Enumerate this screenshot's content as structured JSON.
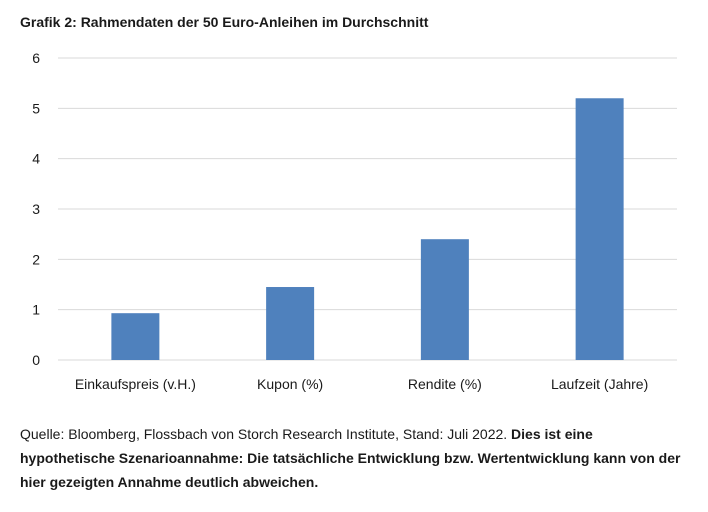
{
  "title": "Grafik 2: Rahmendaten der 50 Euro-Anleihen im Durchschnitt",
  "caption": {
    "source": "Quelle: Bloomberg, Flossbach von Storch Research Institute, Stand: Juli 2022.",
    "disclaimer": "Dies ist eine hypothetische Szenarioannahme: Die tatsächliche Entwicklung bzw. Wertentwicklung kann von der hier gezeigten Annahme deutlich abweichen."
  },
  "colors": {
    "bar": "#4F81BD",
    "grid": "#D9D9D9",
    "text": "#1a1a1a"
  },
  "chart_data": {
    "type": "bar",
    "categories": [
      "Einkaufspreis (v.H.)",
      "Kupon (%)",
      "Rendite (%)",
      "Laufzeit (Jahre)"
    ],
    "values": [
      0.93,
      1.45,
      2.4,
      5.2
    ],
    "yticks": [
      "0",
      "1",
      "2",
      "3",
      "4",
      "5",
      "6"
    ],
    "ylim": [
      0,
      6
    ],
    "grid": true,
    "legend": "none"
  }
}
